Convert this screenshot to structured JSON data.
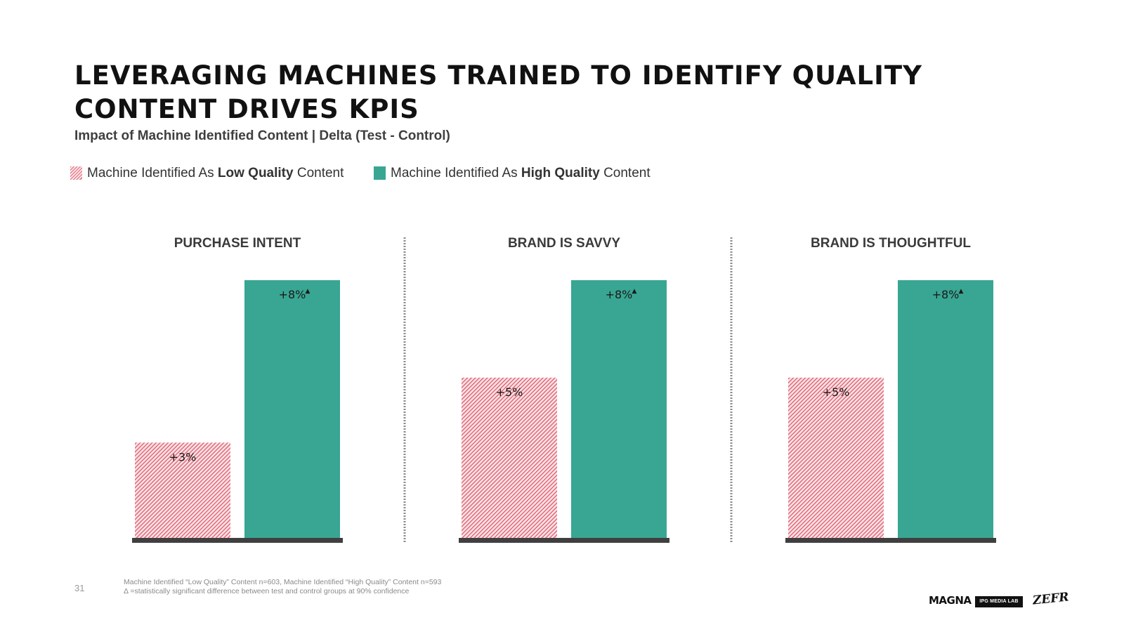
{
  "header": {
    "title_line1": "LEVERAGING MACHINES TRAINED TO IDENTIFY QUALITY",
    "title_line2": "CONTENT DRIVES KPIS",
    "subtitle": "Impact of Machine Identified Content | Delta (Test - Control)"
  },
  "legend": {
    "low": {
      "prefix": "Machine Identified As ",
      "bold": "Low Quality",
      "suffix": " Content"
    },
    "high": {
      "prefix": "Machine Identified As ",
      "bold": "High Quality",
      "suffix": " Content"
    }
  },
  "colors": {
    "high_quality": "#38a693",
    "low_quality_hatch": "#e06c7c",
    "low_quality_bg": "#fbe3e6",
    "baseline": "#3f3f3f",
    "divider": "#8c8c8c"
  },
  "chart_data": [
    {
      "type": "bar",
      "title": "PURCHASE INTENT",
      "ylim": [
        0,
        8
      ],
      "series": [
        {
          "name": "Machine Identified As Low Quality Content",
          "values": [
            3
          ],
          "labels": [
            "+3%"
          ],
          "significant": [
            false
          ]
        },
        {
          "name": "Machine Identified As High Quality Content",
          "values": [
            8
          ],
          "labels": [
            "+8%"
          ],
          "significant": [
            true
          ]
        }
      ]
    },
    {
      "type": "bar",
      "title": "BRAND IS SAVVY",
      "ylim": [
        0,
        8
      ],
      "series": [
        {
          "name": "Machine Identified As Low Quality Content",
          "values": [
            5
          ],
          "labels": [
            "+5%"
          ],
          "significant": [
            false
          ]
        },
        {
          "name": "Machine Identified As High Quality Content",
          "values": [
            8
          ],
          "labels": [
            "+8%"
          ],
          "significant": [
            true
          ]
        }
      ]
    },
    {
      "type": "bar",
      "title": "BRAND IS THOUGHTFUL",
      "ylim": [
        0,
        8
      ],
      "series": [
        {
          "name": "Machine Identified As Low Quality Content",
          "values": [
            5
          ],
          "labels": [
            "+5%"
          ],
          "significant": [
            false
          ]
        },
        {
          "name": "Machine Identified As High Quality Content",
          "values": [
            8
          ],
          "labels": [
            "+8%"
          ],
          "significant": [
            true
          ]
        }
      ]
    }
  ],
  "significance_marker": "▲",
  "footer": {
    "page_number": "31",
    "note_line1": "Machine Identified “Low Quality” Content n=603, Machine Identified “High Quality” Content n=593",
    "note_line2": "Δ =statistically significant difference between test and control groups at 90% confidence",
    "logos": {
      "magna": "MAGNA",
      "ipg": "IPG MEDIA LAB",
      "zefr": "ZEFR"
    }
  }
}
